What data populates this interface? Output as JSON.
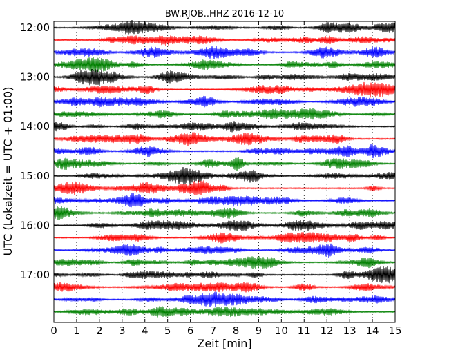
{
  "chart_data": {
    "type": "line",
    "title": "BW.RJOB..HHZ 2016-12-10",
    "xlabel": "Zeit  [min]",
    "ylabel": "UTC (Lokalzeit = UTC + 01:00)",
    "xlim": [
      0,
      15
    ],
    "x_ticks": [
      "0",
      "1",
      "2",
      "3",
      "4",
      "5",
      "6",
      "7",
      "8",
      "9",
      "10",
      "11",
      "12",
      "13",
      "14",
      "15"
    ],
    "y_ticks": [
      "12:00",
      "13:00",
      "14:00",
      "15:00",
      "16:00",
      "17:00"
    ],
    "grid": "vertical dotted",
    "colors": [
      "#000000",
      "#ff0000",
      "#0000ff",
      "#008000"
    ],
    "traces": [
      {
        "start": "12:00",
        "color": "#000000"
      },
      {
        "start": "12:15",
        "color": "#ff0000"
      },
      {
        "start": "12:30",
        "color": "#0000ff"
      },
      {
        "start": "12:45",
        "color": "#008000"
      },
      {
        "start": "13:00",
        "color": "#000000"
      },
      {
        "start": "13:15",
        "color": "#ff0000"
      },
      {
        "start": "13:30",
        "color": "#0000ff"
      },
      {
        "start": "13:45",
        "color": "#008000"
      },
      {
        "start": "14:00",
        "color": "#000000"
      },
      {
        "start": "14:15",
        "color": "#ff0000"
      },
      {
        "start": "14:30",
        "color": "#0000ff"
      },
      {
        "start": "14:45",
        "color": "#008000"
      },
      {
        "start": "15:00",
        "color": "#000000"
      },
      {
        "start": "15:15",
        "color": "#ff0000"
      },
      {
        "start": "15:30",
        "color": "#0000ff"
      },
      {
        "start": "15:45",
        "color": "#008000"
      },
      {
        "start": "16:00",
        "color": "#000000"
      },
      {
        "start": "16:15",
        "color": "#ff0000"
      },
      {
        "start": "16:30",
        "color": "#0000ff"
      },
      {
        "start": "16:45",
        "color": "#008000"
      },
      {
        "start": "17:00",
        "color": "#000000"
      },
      {
        "start": "17:15",
        "color": "#ff0000"
      },
      {
        "start": "17:30",
        "color": "#0000ff"
      },
      {
        "start": "17:45",
        "color": "#008000"
      }
    ]
  }
}
